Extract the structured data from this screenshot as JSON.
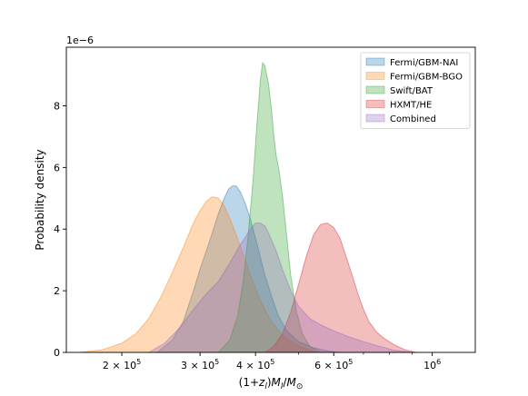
{
  "chart_data": {
    "type": "area",
    "xlabel": "(1+z_l)M_l/M_⊙",
    "ylabel": "Probability density",
    "y_multiplier": "1e−6",
    "x_scale": "log",
    "xlim": [
      150000,
      1250000
    ],
    "ylim": [
      0,
      9.9
    ],
    "x_ticks": [
      {
        "value": 200000,
        "mantissa": "2",
        "exponent": "5"
      },
      {
        "value": 300000,
        "mantissa": "3",
        "exponent": "5"
      },
      {
        "value": 400000,
        "mantissa": "4",
        "exponent": "5"
      },
      {
        "value": 600000,
        "mantissa": "6",
        "exponent": "5"
      },
      {
        "value": 1000000,
        "mantissa": "",
        "exponent": "6"
      }
    ],
    "x_minor_ticks": [
      500000,
      700000,
      800000,
      900000
    ],
    "y_ticks": [
      0,
      2,
      4,
      6,
      8
    ],
    "legend_position": "top-right",
    "grid": false,
    "series": [
      {
        "name": "Fermi/GBM-NAI",
        "color": "#1f77b4",
        "x": [
          240000,
          260000,
          275000,
          290000,
          300000,
          310000,
          320000,
          330000,
          340000,
          348000,
          355000,
          362000,
          370000,
          380000,
          390000,
          400000,
          410000,
          420000,
          435000,
          450000,
          470000,
          500000,
          540000,
          580000,
          620000
        ],
        "y": [
          0,
          0.4,
          1.0,
          2.0,
          2.7,
          3.3,
          3.9,
          4.5,
          5.0,
          5.3,
          5.4,
          5.4,
          5.2,
          4.8,
          4.3,
          3.7,
          3.1,
          2.5,
          1.8,
          1.2,
          0.7,
          0.35,
          0.15,
          0.05,
          0
        ]
      },
      {
        "name": "Fermi/GBM-BGO",
        "color": "#ff7f0e",
        "x": [
          160000,
          180000,
          200000,
          215000,
          230000,
          245000,
          260000,
          275000,
          290000,
          300000,
          310000,
          320000,
          330000,
          340000,
          350000,
          360000,
          375000,
          390000,
          410000,
          430000,
          460000,
          500000,
          550000
        ],
        "y": [
          0,
          0.08,
          0.3,
          0.6,
          1.1,
          1.8,
          2.6,
          3.4,
          4.2,
          4.6,
          4.9,
          5.05,
          5.0,
          4.75,
          4.35,
          3.9,
          3.2,
          2.5,
          1.7,
          1.1,
          0.55,
          0.2,
          0
        ]
      },
      {
        "name": "Swift/BAT",
        "color": "#2ca02c",
        "x": [
          330000,
          350000,
          365000,
          375000,
          385000,
          395000,
          402000,
          410000,
          415000,
          420000,
          428000,
          435000,
          440000,
          445000,
          452000,
          460000,
          470000,
          480000,
          495000,
          510000,
          530000,
          560000
        ],
        "y": [
          0,
          0.4,
          1.2,
          2.3,
          3.8,
          5.6,
          7.2,
          8.8,
          9.4,
          9.3,
          8.7,
          7.8,
          7.0,
          6.4,
          5.9,
          5.1,
          3.8,
          2.5,
          1.3,
          0.6,
          0.2,
          0
        ]
      },
      {
        "name": "HXMT/HE",
        "color": "#d62728",
        "x": [
          420000,
          440000,
          460000,
          480000,
          500000,
          520000,
          540000,
          560000,
          580000,
          600000,
          620000,
          640000,
          660000,
          680000,
          700000,
          720000,
          750000,
          780000,
          820000,
          870000,
          920000
        ],
        "y": [
          0,
          0.2,
          0.6,
          1.3,
          2.2,
          3.1,
          3.8,
          4.15,
          4.2,
          4.05,
          3.7,
          3.1,
          2.5,
          1.9,
          1.4,
          1.0,
          0.65,
          0.45,
          0.25,
          0.08,
          0
        ]
      },
      {
        "name": "Combined",
        "color": "#9467bd",
        "x": [
          230000,
          250000,
          270000,
          290000,
          310000,
          330000,
          350000,
          370000,
          390000,
          400000,
          410000,
          420000,
          430000,
          445000,
          460000,
          480000,
          500000,
          530000,
          560000,
          600000,
          650000,
          700000,
          760000,
          820000,
          900000
        ],
        "y": [
          0,
          0.3,
          0.8,
          1.4,
          1.9,
          2.3,
          2.9,
          3.5,
          4.0,
          4.2,
          4.2,
          4.1,
          3.8,
          3.3,
          2.7,
          2.0,
          1.5,
          1.1,
          0.9,
          0.7,
          0.5,
          0.35,
          0.2,
          0.07,
          0
        ]
      }
    ]
  }
}
